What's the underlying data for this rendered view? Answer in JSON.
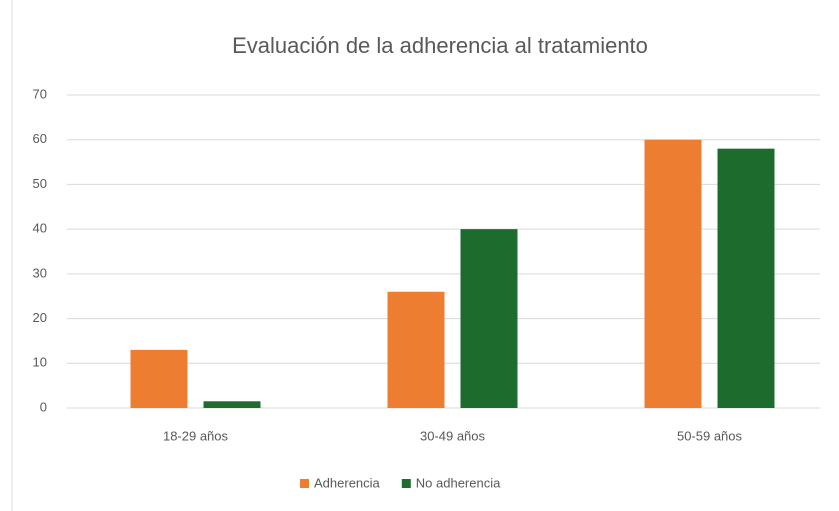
{
  "chart_data": {
    "type": "bar",
    "title": "Evaluación de la adherencia al tratamiento",
    "categories": [
      "18-29 años",
      "30-49 años",
      "50-59 años"
    ],
    "series": [
      {
        "name": "Adherencia",
        "color": "#ed7d31",
        "values": [
          13,
          26,
          60
        ]
      },
      {
        "name": "No adherencia",
        "color": "#1e6b2e",
        "values": [
          1.5,
          40,
          58
        ]
      }
    ],
    "ylim": [
      0,
      70
    ],
    "yticks": [
      0,
      10,
      20,
      30,
      40,
      50,
      60,
      70
    ],
    "grid": true,
    "legend": "bottom"
  }
}
